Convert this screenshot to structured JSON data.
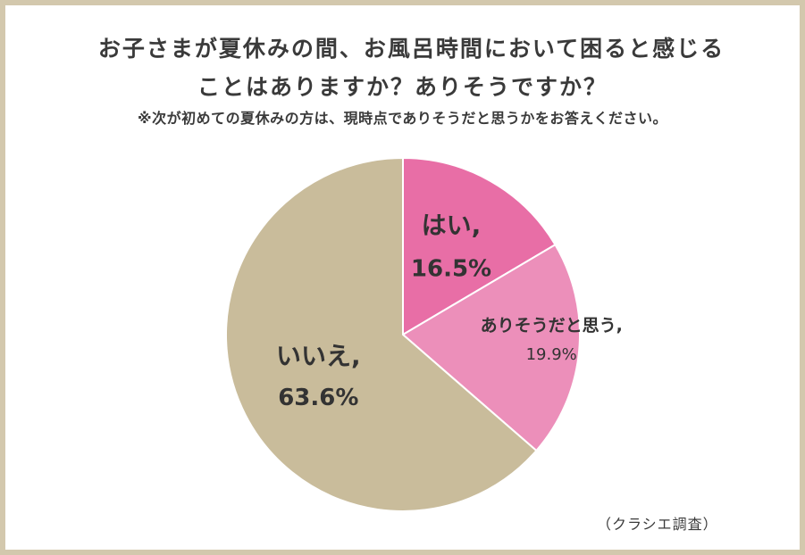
{
  "chart_data": {
    "type": "pie",
    "title_line1": "お子さまが夏休みの間、お風呂時間において困ると感じる",
    "title_line2": "ことはありますか？ありそうですか？",
    "subtitle": "※次が初めての夏休みの方は、現時点でありそうだと思うかをお答えください。",
    "slices": [
      {
        "label": "はい,",
        "value": 16.5,
        "value_label": "16.5%",
        "color": "#e86ea6"
      },
      {
        "label": "ありそうだと思う,",
        "value": 19.9,
        "value_label": "19.9%",
        "color": "#ec8fba"
      },
      {
        "label": "いいえ,",
        "value": 63.6,
        "value_label": "63.6%",
        "color": "#c9bc9b"
      }
    ],
    "start": "12 o'clock",
    "direction": "clockwise",
    "legend": "none"
  },
  "source": "（クラシエ調査）"
}
